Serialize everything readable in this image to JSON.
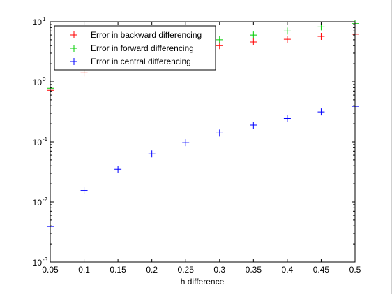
{
  "chart_data": {
    "type": "scatter",
    "xlabel": "h difference",
    "ylabel": "",
    "title": "",
    "x_scale": "linear",
    "y_scale": "log",
    "xlim": [
      0.05,
      0.5
    ],
    "ylim": [
      0.001,
      10
    ],
    "x_ticks": [
      "0.05",
      "0.1",
      "0.15",
      "0.2",
      "0.25",
      "0.3",
      "0.35",
      "0.4",
      "0.45",
      "0.5"
    ],
    "y_ticks": [
      {
        "base": "10",
        "exp": "-3"
      },
      {
        "base": "10",
        "exp": "-2"
      },
      {
        "base": "10",
        "exp": "-1"
      },
      {
        "base": "10",
        "exp": "0"
      },
      {
        "base": "10",
        "exp": "1"
      }
    ],
    "legend_position": "top-left",
    "x": [
      0.05,
      0.1,
      0.15,
      0.2,
      0.25,
      0.3,
      0.35,
      0.4,
      0.45,
      0.5
    ],
    "series": [
      {
        "name": "Error in backward differencing",
        "color": "#ff0000",
        "marker": "+",
        "values": [
          0.72,
          1.4,
          2.2,
          2.9,
          3.5,
          4.0,
          4.6,
          5.1,
          5.7,
          6.2
        ]
      },
      {
        "name": "Error in forward differencing",
        "color": "#00cc00",
        "marker": "+",
        "values": [
          0.78,
          1.6,
          2.5,
          3.3,
          4.2,
          5.0,
          6.0,
          7.0,
          8.2,
          9.3
        ]
      },
      {
        "name": "Error in central differencing",
        "color": "#0000ff",
        "marker": "+",
        "values": [
          0.0039,
          0.0155,
          0.035,
          0.063,
          0.097,
          0.14,
          0.19,
          0.245,
          0.315,
          0.39
        ]
      }
    ]
  }
}
